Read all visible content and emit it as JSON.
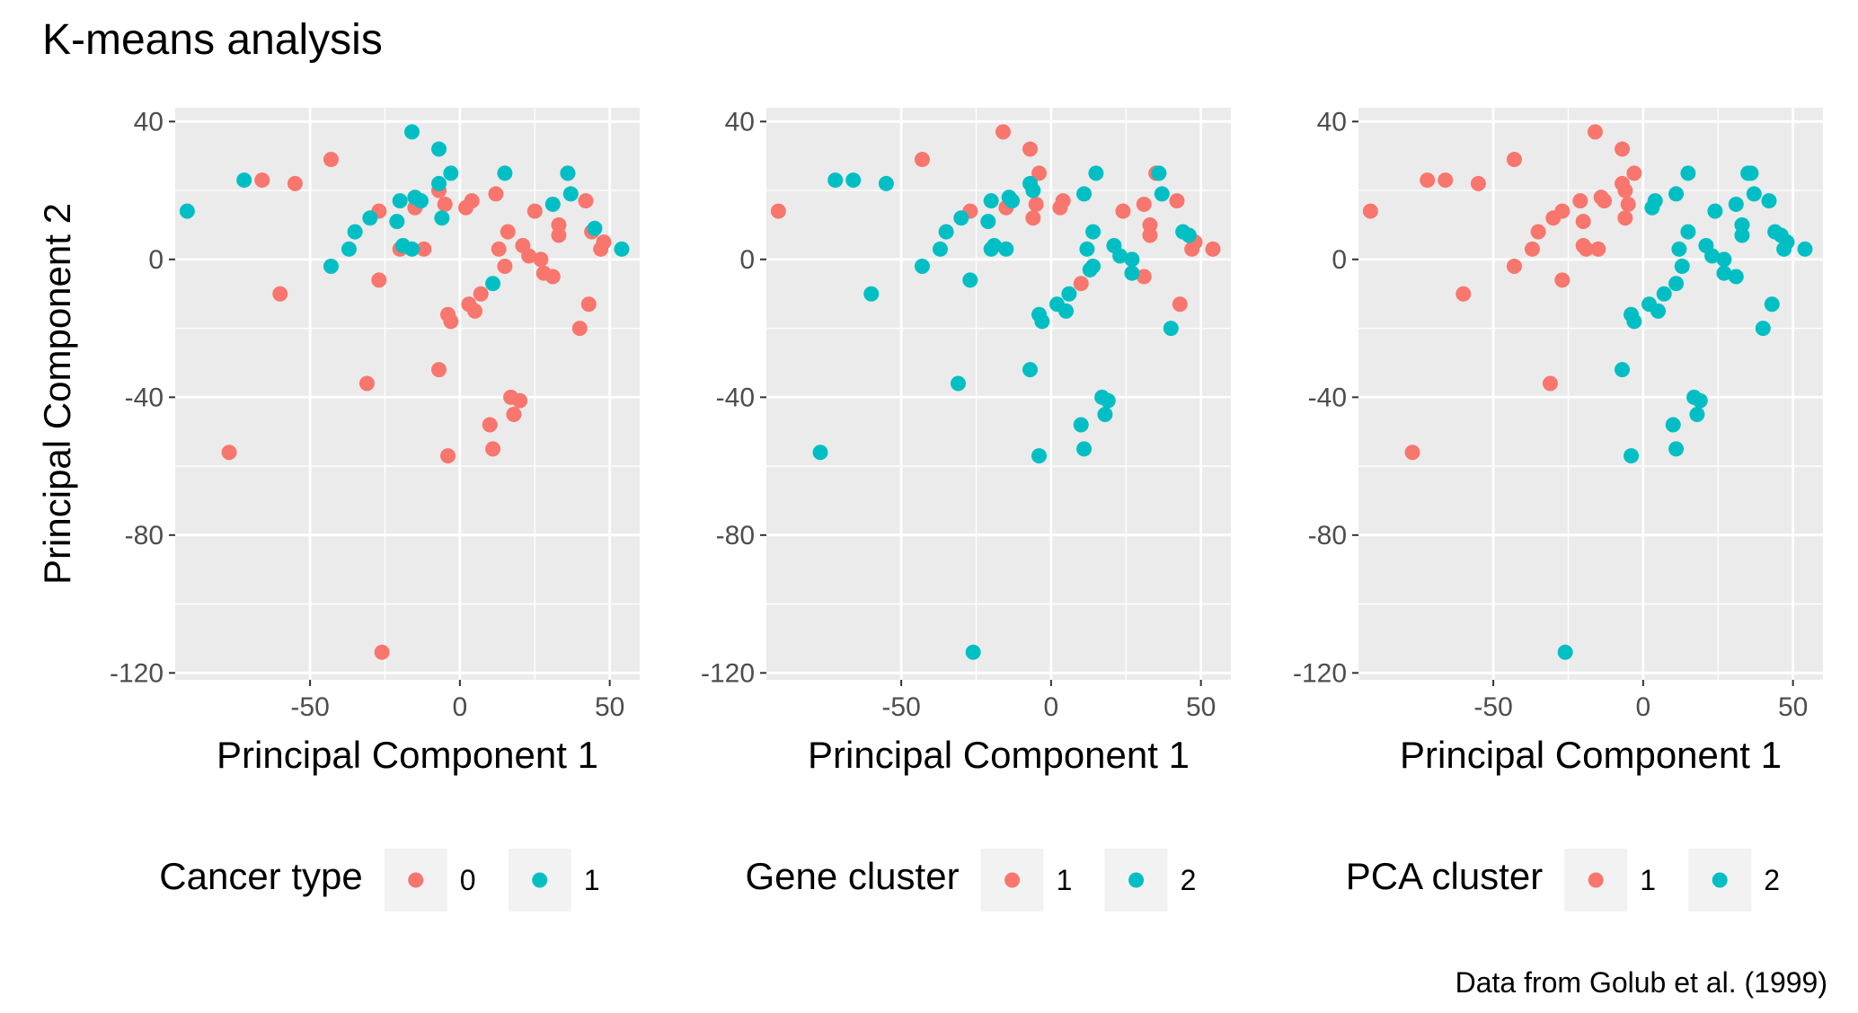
{
  "title": "K-means analysis",
  "caption": "Data from Golub et al. (1999)",
  "colors": {
    "red": "#F8766D",
    "teal": "#00BFC4",
    "panel": "#EBEBEB",
    "grid": "#FFFFFF"
  },
  "chart_data": [
    {
      "type": "scatter",
      "xlabel": "Principal Component 1",
      "ylabel": "Principal Component 2",
      "xlim": [
        -95,
        60
      ],
      "ylim": [
        -122,
        44
      ],
      "x_ticks": [
        -50,
        0,
        50
      ],
      "x_tick_labels": [
        "-50",
        "0",
        "50"
      ],
      "y_ticks": [
        40,
        0,
        -40,
        -80,
        -120
      ],
      "y_tick_labels": [
        "40",
        "0",
        "-40",
        "-80",
        "-120"
      ],
      "grid": true,
      "legend": {
        "title": "Cancer type",
        "position": "bottom",
        "entries": [
          {
            "label": "0",
            "color": "#F8766D"
          },
          {
            "label": "1",
            "color": "#00BFC4"
          }
        ]
      },
      "series": [
        {
          "name": "0",
          "color": "#F8766D",
          "points": [
            [
              -77,
              -56
            ],
            [
              -66,
              23
            ],
            [
              -60,
              -10
            ],
            [
              -55,
              22
            ],
            [
              -43,
              29
            ],
            [
              -31,
              -36
            ],
            [
              -27,
              14
            ],
            [
              -27,
              -6
            ],
            [
              -26,
              -114
            ],
            [
              -20,
              3
            ],
            [
              -15,
              15
            ],
            [
              -12,
              3
            ],
            [
              -7,
              20
            ],
            [
              -7,
              -32
            ],
            [
              -5,
              16
            ],
            [
              -4,
              -57
            ],
            [
              -4,
              -16
            ],
            [
              -3,
              -18
            ],
            [
              2,
              15
            ],
            [
              3,
              -13
            ],
            [
              4,
              17
            ],
            [
              5,
              -15
            ],
            [
              7,
              -10
            ],
            [
              10,
              -48
            ],
            [
              11,
              -55
            ],
            [
              12,
              19
            ],
            [
              13,
              3
            ],
            [
              15,
              -2
            ],
            [
              16,
              8
            ],
            [
              17,
              -40
            ],
            [
              18,
              -45
            ],
            [
              20,
              -41
            ],
            [
              21,
              4
            ],
            [
              23,
              1
            ],
            [
              25,
              14
            ],
            [
              27,
              0
            ],
            [
              28,
              -4
            ],
            [
              31,
              -5
            ],
            [
              33,
              10
            ],
            [
              33,
              7
            ],
            [
              36,
              25
            ],
            [
              40,
              -20
            ],
            [
              43,
              -13
            ],
            [
              44,
              8
            ],
            [
              47,
              3
            ],
            [
              48,
              5
            ],
            [
              42,
              17
            ]
          ]
        },
        {
          "name": "1",
          "color": "#00BFC4",
          "points": [
            [
              -91,
              14
            ],
            [
              -72,
              23
            ],
            [
              -43,
              -2
            ],
            [
              -37,
              3
            ],
            [
              -35,
              8
            ],
            [
              -30,
              12
            ],
            [
              -21,
              11
            ],
            [
              -20,
              17
            ],
            [
              -19,
              4
            ],
            [
              -16,
              3
            ],
            [
              -16,
              37
            ],
            [
              -13,
              17
            ],
            [
              -15,
              18
            ],
            [
              -7,
              22
            ],
            [
              -7,
              32
            ],
            [
              -6,
              12
            ],
            [
              -3,
              25
            ],
            [
              11,
              -7
            ],
            [
              15,
              25
            ],
            [
              31,
              16
            ],
            [
              36,
              25
            ],
            [
              37,
              19
            ],
            [
              45,
              9
            ],
            [
              54,
              3
            ]
          ]
        }
      ]
    },
    {
      "type": "scatter",
      "xlabel": "Principal Component 1",
      "ylabel": "",
      "xlim": [
        -95,
        60
      ],
      "ylim": [
        -122,
        44
      ],
      "x_ticks": [
        -50,
        0,
        50
      ],
      "x_tick_labels": [
        "-50",
        "0",
        "50"
      ],
      "y_ticks": [
        40,
        0,
        -40,
        -80,
        -120
      ],
      "y_tick_labels": [
        "40",
        "0",
        "-40",
        "-80",
        "-120"
      ],
      "grid": true,
      "legend": {
        "title": "Gene cluster",
        "position": "bottom",
        "entries": [
          {
            "label": "1",
            "color": "#F8766D"
          },
          {
            "label": "2",
            "color": "#00BFC4"
          }
        ]
      },
      "series": [
        {
          "name": "1",
          "color": "#F8766D",
          "points": [
            [
              -91,
              14
            ],
            [
              -43,
              29
            ],
            [
              -27,
              14
            ],
            [
              -16,
              37
            ],
            [
              -15,
              15
            ],
            [
              -7,
              32
            ],
            [
              -6,
              12
            ],
            [
              -4,
              25
            ],
            [
              -5,
              16
            ],
            [
              3,
              15
            ],
            [
              4,
              17
            ],
            [
              10,
              -7
            ],
            [
              24,
              14
            ],
            [
              31,
              16
            ],
            [
              31,
              -5
            ],
            [
              33,
              7
            ],
            [
              33,
              10
            ],
            [
              35,
              25
            ],
            [
              42,
              17
            ],
            [
              43,
              -13
            ],
            [
              47,
              3
            ],
            [
              48,
              5
            ],
            [
              54,
              3
            ]
          ]
        },
        {
          "name": "2",
          "color": "#00BFC4",
          "points": [
            [
              -77,
              -56
            ],
            [
              -72,
              23
            ],
            [
              -66,
              23
            ],
            [
              -60,
              -10
            ],
            [
              -55,
              22
            ],
            [
              -43,
              -2
            ],
            [
              -37,
              3
            ],
            [
              -35,
              8
            ],
            [
              -31,
              -36
            ],
            [
              -30,
              12
            ],
            [
              -27,
              -6
            ],
            [
              -26,
              -114
            ],
            [
              -21,
              11
            ],
            [
              -20,
              17
            ],
            [
              -19,
              4
            ],
            [
              -20,
              3
            ],
            [
              -15,
              3
            ],
            [
              -14,
              18
            ],
            [
              -13,
              17
            ],
            [
              -7,
              22
            ],
            [
              -7,
              -32
            ],
            [
              -6,
              20
            ],
            [
              -4,
              -57
            ],
            [
              -4,
              -16
            ],
            [
              -3,
              -18
            ],
            [
              2,
              -13
            ],
            [
              5,
              -15
            ],
            [
              6,
              -10
            ],
            [
              10,
              -48
            ],
            [
              11,
              -55
            ],
            [
              11,
              19
            ],
            [
              12,
              3
            ],
            [
              13,
              -3
            ],
            [
              14,
              -2
            ],
            [
              14,
              8
            ],
            [
              15,
              25
            ],
            [
              17,
              -40
            ],
            [
              18,
              -45
            ],
            [
              19,
              -41
            ],
            [
              21,
              4
            ],
            [
              23,
              1
            ],
            [
              27,
              0
            ],
            [
              27,
              -4
            ],
            [
              36,
              25
            ],
            [
              37,
              19
            ],
            [
              40,
              -20
            ],
            [
              44,
              8
            ],
            [
              46,
              7
            ]
          ]
        }
      ]
    },
    {
      "type": "scatter",
      "xlabel": "Principal Component 1",
      "ylabel": "",
      "xlim": [
        -95,
        60
      ],
      "ylim": [
        -122,
        44
      ],
      "x_ticks": [
        -50,
        0,
        50
      ],
      "x_tick_labels": [
        "-50",
        "0",
        "50"
      ],
      "y_ticks": [
        40,
        0,
        -40,
        -80,
        -120
      ],
      "y_tick_labels": [
        "40",
        "0",
        "-40",
        "-80",
        "-120"
      ],
      "grid": true,
      "legend": {
        "title": "PCA cluster",
        "position": "bottom",
        "entries": [
          {
            "label": "1",
            "color": "#F8766D"
          },
          {
            "label": "2",
            "color": "#00BFC4"
          }
        ]
      },
      "series": [
        {
          "name": "1",
          "color": "#F8766D",
          "points": [
            [
              -91,
              14
            ],
            [
              -77,
              -56
            ],
            [
              -72,
              23
            ],
            [
              -66,
              23
            ],
            [
              -60,
              -10
            ],
            [
              -55,
              22
            ],
            [
              -43,
              29
            ],
            [
              -43,
              -2
            ],
            [
              -37,
              3
            ],
            [
              -35,
              8
            ],
            [
              -31,
              -36
            ],
            [
              -30,
              12
            ],
            [
              -27,
              14
            ],
            [
              -27,
              -6
            ],
            [
              -21,
              17
            ],
            [
              -20,
              11
            ],
            [
              -20,
              4
            ],
            [
              -19,
              3
            ],
            [
              -16,
              37
            ],
            [
              -15,
              3
            ],
            [
              -14,
              18
            ],
            [
              -13,
              17
            ],
            [
              -7,
              32
            ],
            [
              -7,
              22
            ],
            [
              -6,
              20
            ],
            [
              -6,
              12
            ],
            [
              -5,
              16
            ],
            [
              -3,
              25
            ]
          ]
        },
        {
          "name": "2",
          "color": "#00BFC4",
          "points": [
            [
              -26,
              -114
            ],
            [
              -7,
              -32
            ],
            [
              -4,
              -57
            ],
            [
              -4,
              -16
            ],
            [
              -3,
              -18
            ],
            [
              2,
              -13
            ],
            [
              3,
              15
            ],
            [
              4,
              17
            ],
            [
              5,
              -15
            ],
            [
              7,
              -10
            ],
            [
              10,
              -48
            ],
            [
              11,
              -55
            ],
            [
              11,
              -7
            ],
            [
              11,
              19
            ],
            [
              12,
              3
            ],
            [
              13,
              -2
            ],
            [
              15,
              8
            ],
            [
              15,
              25
            ],
            [
              17,
              -40
            ],
            [
              18,
              -45
            ],
            [
              19,
              -41
            ],
            [
              21,
              4
            ],
            [
              23,
              1
            ],
            [
              24,
              14
            ],
            [
              27,
              0
            ],
            [
              27,
              -4
            ],
            [
              31,
              -5
            ],
            [
              31,
              16
            ],
            [
              33,
              10
            ],
            [
              33,
              7
            ],
            [
              35,
              25
            ],
            [
              36,
              25
            ],
            [
              37,
              19
            ],
            [
              40,
              -20
            ],
            [
              42,
              17
            ],
            [
              43,
              -13
            ],
            [
              44,
              8
            ],
            [
              46,
              7
            ],
            [
              47,
              3
            ],
            [
              48,
              5
            ],
            [
              54,
              3
            ]
          ]
        }
      ]
    }
  ]
}
